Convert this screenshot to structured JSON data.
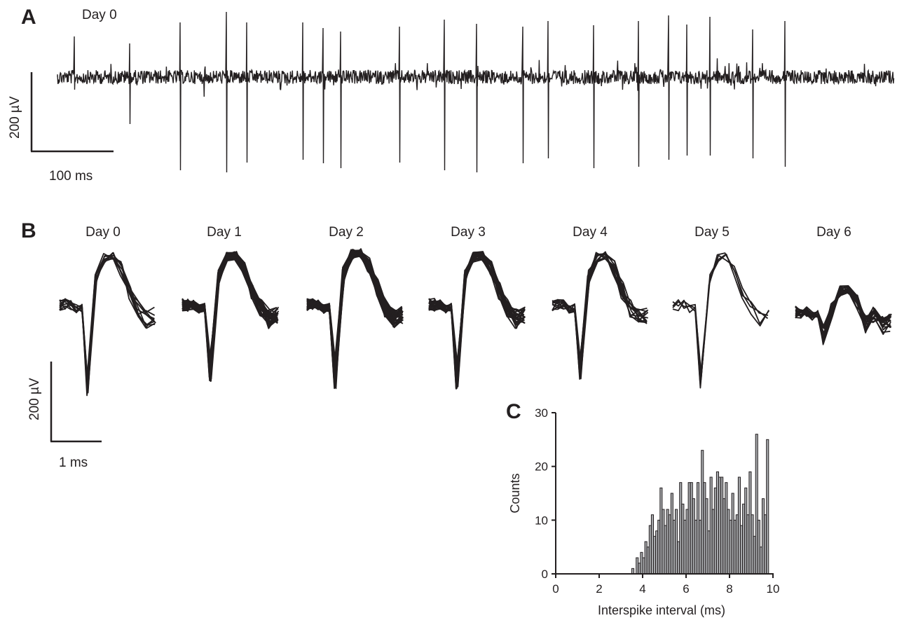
{
  "colors": {
    "trace": "#231f20",
    "bar_fill": "#a7a9ac",
    "bar_stroke": "#231f20"
  },
  "panel_a": {
    "letter": "A",
    "day_label": "Day 0",
    "scale_y_label": "200 µV",
    "scale_x_label": "100 ms"
  },
  "panel_b": {
    "letter": "B",
    "days": [
      "Day 0",
      "Day 1",
      "Day 2",
      "Day 3",
      "Day 4",
      "Day 5",
      "Day 6"
    ],
    "scale_y_label": "200 µV",
    "scale_x_label": "1 ms"
  },
  "chart_data": {
    "type": "bar",
    "panel": "C",
    "title": "",
    "xlabel": "Interspike interval (ms)",
    "ylabel": "Counts",
    "xlim": [
      0,
      10
    ],
    "ylim": [
      0,
      30
    ],
    "x_ticks": [
      0,
      2,
      4,
      6,
      8,
      10
    ],
    "y_ticks": [
      0,
      10,
      20,
      30
    ],
    "bin_width": 0.1,
    "x": [
      3.5,
      3.6,
      3.7,
      3.8,
      3.9,
      4.0,
      4.1,
      4.2,
      4.3,
      4.4,
      4.5,
      4.6,
      4.7,
      4.8,
      4.9,
      5.0,
      5.1,
      5.2,
      5.3,
      5.4,
      5.5,
      5.6,
      5.7,
      5.8,
      5.9,
      6.0,
      6.1,
      6.2,
      6.3,
      6.4,
      6.5,
      6.6,
      6.7,
      6.8,
      6.9,
      7.0,
      7.1,
      7.2,
      7.3,
      7.4,
      7.5,
      7.6,
      7.7,
      7.8,
      7.9,
      8.0,
      8.1,
      8.2,
      8.3,
      8.4,
      8.5,
      8.6,
      8.7,
      8.8,
      8.9,
      9.0,
      9.1,
      9.2,
      9.3,
      9.4,
      9.5,
      9.6,
      9.7,
      9.8,
      9.9
    ],
    "values": [
      1,
      0,
      3,
      2,
      4,
      3,
      6,
      5,
      9,
      11,
      7,
      8,
      10,
      16,
      12,
      9,
      12,
      11,
      15,
      10,
      12,
      6,
      17,
      13,
      10,
      12,
      17,
      17,
      14,
      10,
      17,
      10,
      23,
      17,
      14,
      8,
      18,
      12,
      16,
      19,
      18,
      18,
      14,
      17,
      12,
      10,
      15,
      10,
      11,
      18,
      9,
      13,
      16,
      11,
      19,
      11,
      7,
      26,
      10,
      5,
      14,
      11,
      25,
      0,
      0
    ]
  }
}
